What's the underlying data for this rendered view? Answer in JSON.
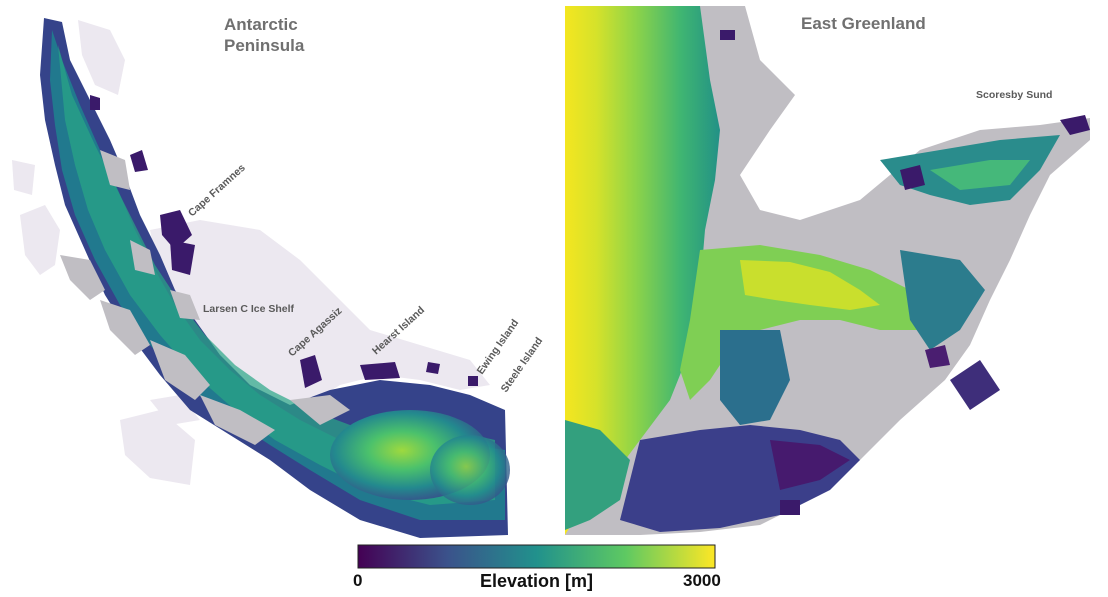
{
  "panels": [
    {
      "title_lines": [
        "Antarctic",
        "Peninsula"
      ],
      "labels": [
        "Cape Framnes",
        "Larsen C Ice Shelf",
        "Cape Agassiz",
        "Hearst Island",
        "Ewing Island",
        "Steele Island"
      ]
    },
    {
      "title_lines": [
        "East Greenland"
      ],
      "labels": [
        "Scoresby Sund"
      ]
    }
  ],
  "colorbar": {
    "min_label": "0",
    "max_label": "3000",
    "title": "Elevation [m]",
    "min_value": 0,
    "max_value": 3000,
    "colormap": [
      "#440154",
      "#3b528b",
      "#21918c",
      "#5ec962",
      "#fde725"
    ]
  },
  "colors": {
    "ice_shelf": "#ece8f0",
    "no_data": "#c0bec3",
    "titles": "#707070",
    "labels": "#5a5a5a"
  }
}
